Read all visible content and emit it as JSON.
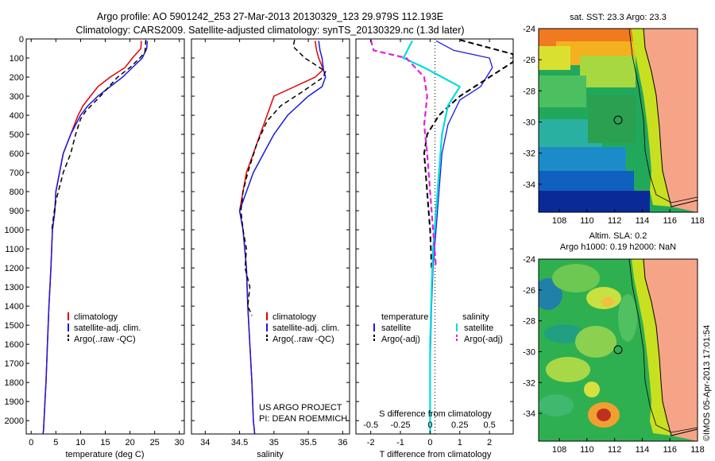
{
  "header": {
    "line1": "Argo profile: AO 5901242_253 27-Mar-2013 20130329_123 29.979S 112.193E",
    "line2": "Climatology: CARS2009. Satellite-adjusted climatology: synTS_20130329.nc (1.3d later)"
  },
  "colors": {
    "climatology": "#e00000",
    "satellite": "#1a1ae0",
    "argo": "#000000",
    "salinity_sat": "#00dddd",
    "salinity_argo": "#e020e0"
  },
  "chart_data": [
    {
      "type": "line",
      "name": "temperature-profile",
      "xlabel": "temperature (deg C)",
      "ylabel": "",
      "xlim": [
        -1,
        31
      ],
      "ylim": [
        2070,
        0
      ],
      "xticks": [
        0,
        5,
        10,
        15,
        20,
        25,
        30
      ],
      "yticks": [
        0,
        100,
        200,
        300,
        400,
        500,
        600,
        700,
        800,
        900,
        1000,
        1100,
        1200,
        1300,
        1400,
        1500,
        1600,
        1700,
        1800,
        1900,
        2000
      ],
      "legend": [
        "climatology",
        "satellite-adj. clim.",
        "Argo(..raw -QC)"
      ],
      "legend_position": "lower-center",
      "series": [
        {
          "name": "climatology",
          "x": [
            22.3,
            22.2,
            20.5,
            19.0,
            16.0,
            13.5,
            12.0,
            10.5,
            9.5,
            8.0,
            6.5,
            5.0,
            4.8,
            4.3,
            4.0,
            3.6,
            3.3,
            3.0,
            2.8,
            2.6,
            2.5,
            2.4
          ],
          "y": [
            10,
            50,
            100,
            150,
            200,
            250,
            300,
            350,
            400,
            500,
            600,
            800,
            900,
            1000,
            1200,
            1400,
            1600,
            1800,
            1900,
            2000,
            2050,
            2070
          ]
        },
        {
          "name": "satellite-adj. clim.",
          "x": [
            23.5,
            23.4,
            22.5,
            20.5,
            18.5,
            16.0,
            13.5,
            11.5,
            10.0,
            8.0,
            6.5,
            5.0,
            4.8,
            4.3,
            4.0,
            3.6,
            3.3,
            3.0,
            2.8,
            2.6,
            2.5,
            2.4
          ],
          "y": [
            10,
            50,
            100,
            150,
            200,
            250,
            300,
            350,
            400,
            500,
            600,
            800,
            900,
            1000,
            1200,
            1400,
            1600,
            1800,
            1900,
            2000,
            2050,
            2070
          ]
        },
        {
          "name": "Argo(..raw -QC)",
          "x": [
            23.2,
            23.1,
            23.0,
            22.0,
            20.0,
            17.5,
            14.0,
            11.0,
            10.0,
            9.0,
            8.0,
            6.5,
            5.0,
            4.7,
            4.2
          ],
          "y": [
            5,
            50,
            70,
            100,
            150,
            200,
            300,
            380,
            420,
            500,
            600,
            700,
            850,
            900,
            1000
          ]
        }
      ]
    },
    {
      "type": "line",
      "name": "salinity-profile",
      "xlabel": "salinity",
      "ylabel": "",
      "xlim": [
        33.8,
        36.1
      ],
      "ylim": [
        2070,
        0
      ],
      "xticks": [
        34,
        34.5,
        35,
        35.5,
        36
      ],
      "legend": [
        "climatology",
        "satellite-adj. clim.",
        "Argo(..raw -QC)"
      ],
      "legend_position": "lower-center",
      "annotations": [
        "US ARGO PROJECT",
        "PI: DEAN ROEMMICH"
      ],
      "series": [
        {
          "name": "climatology",
          "x": [
            35.6,
            35.62,
            35.65,
            35.72,
            35.6,
            35.3,
            35.0,
            34.9,
            34.8,
            34.7,
            34.6,
            34.55,
            34.5,
            34.55,
            34.6,
            34.62,
            34.65,
            34.68,
            34.7,
            34.72
          ],
          "y": [
            10,
            60,
            100,
            160,
            200,
            250,
            300,
            400,
            500,
            600,
            700,
            800,
            900,
            1000,
            1200,
            1400,
            1600,
            1800,
            2000,
            2070
          ]
        },
        {
          "name": "satellite-adj. clim.",
          "x": [
            35.65,
            35.67,
            35.7,
            35.72,
            35.75,
            35.7,
            35.5,
            35.2,
            35.0,
            34.85,
            34.7,
            34.6,
            34.5,
            34.55,
            34.6,
            34.62,
            34.65,
            34.68,
            34.7,
            34.72
          ],
          "y": [
            10,
            60,
            100,
            160,
            200,
            250,
            300,
            400,
            500,
            600,
            700,
            800,
            900,
            1000,
            1200,
            1400,
            1600,
            1800,
            2000,
            2070
          ]
        },
        {
          "name": "Argo(..raw -QC)",
          "x": [
            35.3,
            35.28,
            35.45,
            35.75,
            35.72,
            35.6,
            35.4,
            35.1,
            34.9,
            34.75,
            34.62,
            34.55,
            34.52,
            34.55,
            34.6,
            34.58,
            34.65,
            34.62,
            34.68
          ],
          "y": [
            5,
            40,
            100,
            170,
            200,
            230,
            280,
            350,
            430,
            550,
            700,
            800,
            900,
            1000,
            1100,
            1200,
            1300,
            1400,
            1450
          ]
        }
      ]
    },
    {
      "type": "line",
      "name": "difference-profile",
      "xlabel": "T difference from climatology",
      "x2label": "S difference from climatology",
      "ylabel": "",
      "xlim": [
        -2.5,
        2.8
      ],
      "ylim": [
        2070,
        0
      ],
      "xticks": [
        -2,
        -1,
        0,
        1,
        2
      ],
      "x2ticks": [
        -0.5,
        -0.25,
        0,
        0.25,
        0.5
      ],
      "legend_groups": [
        {
          "title": "temperature",
          "entries": [
            "satellite",
            "Argo(-adj)"
          ]
        },
        {
          "title": "salinity",
          "entries": [
            "satellite",
            "Argo(-adj)"
          ]
        }
      ],
      "legend_position": "lower-center",
      "series": [
        {
          "name": "T satellite",
          "group": "temperature",
          "x": [
            0.2,
            0.8,
            2.0,
            2.1,
            1.7,
            1.0,
            0.6,
            0.4,
            0.3,
            0.2,
            0.1,
            0.05,
            0.02,
            0,
            0
          ],
          "y": [
            10,
            60,
            100,
            150,
            250,
            320,
            450,
            600,
            800,
            1000,
            1200,
            1400,
            1600,
            1800,
            2070
          ]
        },
        {
          "name": "T Argo(-adj)",
          "group": "temperature",
          "x": [
            1.0,
            2.8,
            2.8,
            2.4,
            2.0,
            1.0,
            0.3,
            -0.1,
            -0.2,
            -0.15,
            -0.05,
            0,
            0.05
          ],
          "y": [
            5,
            80,
            120,
            160,
            200,
            300,
            400,
            500,
            600,
            700,
            900,
            1000,
            1200
          ]
        },
        {
          "name": "S satellite",
          "group": "salinity",
          "x": [
            -0.6,
            -0.8,
            -0.9,
            -0.2,
            1.0,
            0.6,
            0.4,
            0.3,
            0.2,
            0.1,
            0.05,
            0,
            0
          ],
          "y": [
            10,
            70,
            100,
            150,
            250,
            350,
            500,
            700,
            900,
            1100,
            1300,
            1600,
            2070
          ]
        },
        {
          "name": "S Argo(-adj)",
          "group": "salinity",
          "x": [
            -2.0,
            -1.9,
            -0.8,
            -0.2,
            -0.1,
            -0.2,
            -0.1,
            0,
            0.1,
            0.2
          ],
          "y": [
            5,
            60,
            100,
            200,
            300,
            450,
            600,
            800,
            1000,
            1200
          ]
        }
      ]
    },
    {
      "type": "heatmap",
      "name": "sst-map",
      "title": "sat. SST: 23.3 Argo: 23.3",
      "xlim": [
        106.5,
        118
      ],
      "ylim": [
        -35.8,
        -24
      ],
      "xticks": [
        108,
        110,
        112,
        114,
        116,
        118
      ],
      "yticks": [
        -24,
        -26,
        -28,
        -30,
        -32,
        -34
      ],
      "marker": {
        "lon": 112.193,
        "lat": -29.979
      }
    },
    {
      "type": "heatmap",
      "name": "sla-map",
      "title": "Altim. SLA: 0.2",
      "subtitle": "Argo h1000: 0.19 h2000: NaN",
      "xlim": [
        106.5,
        118
      ],
      "ylim": [
        -35.8,
        -24
      ],
      "xticks": [
        108,
        110,
        112,
        114,
        116,
        118
      ],
      "yticks": [
        -24,
        -26,
        -28,
        -30,
        -32,
        -34
      ],
      "marker": {
        "lon": 112.193,
        "lat": -29.979
      }
    }
  ],
  "side_stamp": "©IMOS 05-Apr-2013 17:01:54"
}
